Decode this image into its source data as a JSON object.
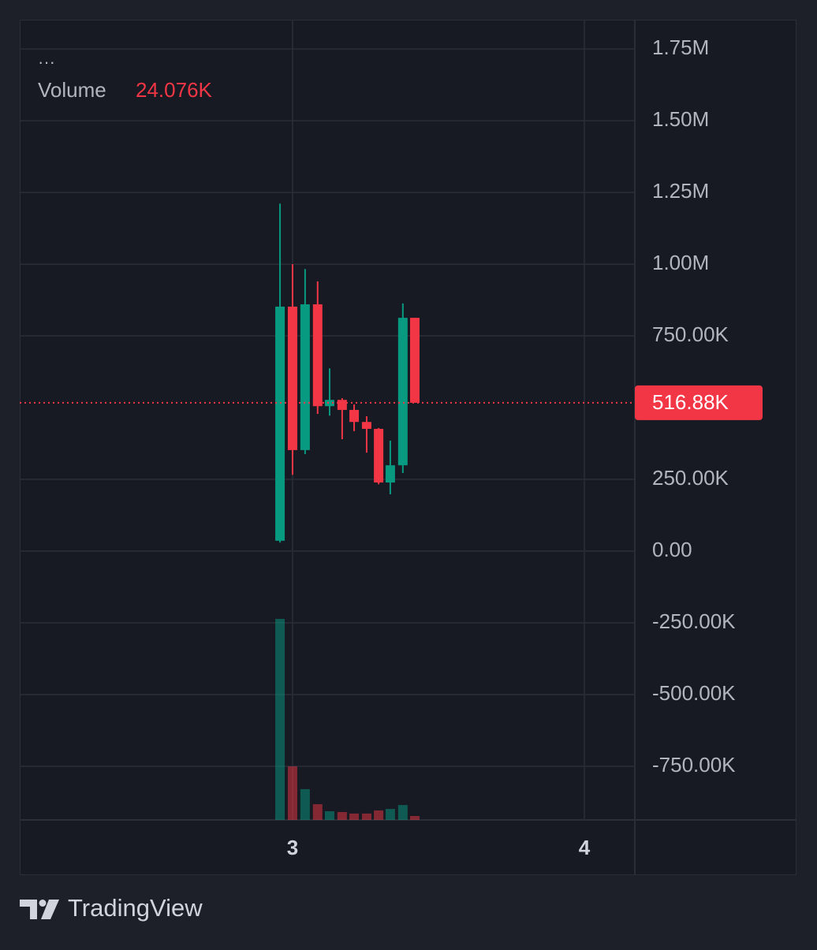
{
  "chart_data": {
    "type": "candlestick",
    "x": [
      2.957,
      3.0,
      3.043,
      3.086,
      3.127,
      3.17,
      3.211,
      3.254,
      3.295,
      3.335,
      3.378,
      3.419
    ],
    "open": [
      36000,
      852000,
      352000,
      860000,
      505000,
      527000,
      492000,
      450000,
      426000,
      239000,
      299000,
      813000
    ],
    "high": [
      1211000,
      1000000,
      983000,
      940000,
      637000,
      533000,
      511000,
      470000,
      429000,
      385000,
      863000,
      813000
    ],
    "low": [
      30000,
      266000,
      338000,
      478000,
      472000,
      390000,
      418000,
      343000,
      233000,
      198000,
      272000,
      516880
    ],
    "close": [
      852000,
      352000,
      860000,
      505000,
      527000,
      492000,
      450000,
      426000,
      239000,
      299000,
      813000,
      516880
    ],
    "up_color": "#089981",
    "down_color": "#f23645",
    "volume": {
      "name": "Volume",
      "values": [
        1228000,
        327000,
        188000,
        96000,
        53000,
        48000,
        39000,
        39000,
        58000,
        67000,
        91000,
        24076
      ],
      "value_labels": [
        null,
        null,
        null,
        null,
        null,
        null,
        null,
        null,
        null,
        null,
        null,
        "24.076K"
      ]
    },
    "legend_menu": "···",
    "last_price": {
      "value": 516880,
      "label": "516.88K"
    },
    "xlim": [
      2.065,
      4.173
    ],
    "xticks": [
      3,
      4
    ],
    "ylim": [
      -937000,
      1852000
    ],
    "yticks": [
      {
        "value": -750000,
        "label": "-750.00K"
      },
      {
        "value": -500000,
        "label": "-500.00K"
      },
      {
        "value": -250000,
        "label": "-250.00K"
      },
      {
        "value": 0,
        "label": "0.00"
      },
      {
        "value": 250000,
        "label": "250.00K"
      },
      {
        "value": 750000,
        "label": "750.00K"
      },
      {
        "value": 1000000,
        "label": "1.00M"
      },
      {
        "value": 1250000,
        "label": "1.25M"
      },
      {
        "value": 1500000,
        "label": "1.50M"
      },
      {
        "value": 1750000,
        "label": "1.75M"
      }
    ],
    "grid": true
  },
  "branding": "TradingView"
}
